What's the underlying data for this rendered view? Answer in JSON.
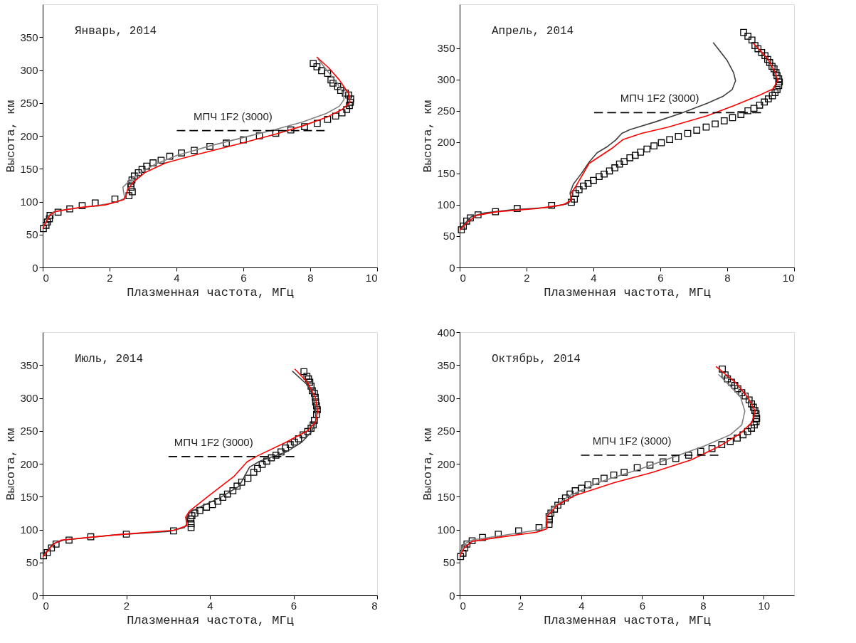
{
  "chart_data": [
    {
      "type": "line",
      "xlabel": "Плазменная частота, МГц",
      "ylabel": "Высота, км",
      "xlim": [
        0,
        10
      ],
      "xticks": [
        0,
        2,
        4,
        6,
        8,
        10
      ],
      "ylim": [
        0,
        400
      ],
      "yticks": [
        0,
        50,
        100,
        150,
        200,
        250,
        300,
        350
      ],
      "grid": false,
      "annotations": [
        "Январь, 2014"
      ],
      "series": [
        {
          "type": "scatter",
          "marker": "square",
          "color": "#000000",
          "x": [
            0.02,
            0.1,
            0.14,
            0.2,
            0.22,
            0.46,
            0.81,
            1.18,
            1.57,
            2.16,
            2.58,
            2.68,
            2.64,
            2.64,
            2.67,
            2.74,
            2.86,
            2.97,
            3.11,
            3.3,
            3.54,
            3.8,
            4.15,
            4.53,
            5.0,
            5.49,
            6.0,
            6.48,
            6.97,
            7.42,
            7.83,
            8.21,
            8.52,
            8.76,
            8.95,
            9.09,
            9.17,
            9.2,
            9.21,
            9.15,
            9.05,
            8.91,
            8.82,
            8.68,
            8.62,
            8.52,
            8.34,
            8.2,
            8.09
          ],
          "values": [
            59,
            64,
            69,
            74,
            79,
            84,
            89,
            94,
            98,
            104,
            109,
            115,
            122,
            127,
            133,
            139,
            144,
            149,
            154,
            159,
            163,
            169,
            174,
            178,
            184,
            189,
            194,
            200,
            204,
            209,
            214,
            219,
            225,
            230,
            235,
            240,
            246,
            251,
            256,
            262,
            265,
            269,
            275,
            280,
            285,
            295,
            299,
            305,
            310
          ]
        },
        {
          "type": "line",
          "color": "#808080",
          "x": [
            0,
            0.18,
            0.3,
            0.69,
            1.48,
            2.11,
            2.46,
            2.42,
            2.4,
            2.58,
            2.86,
            3.37,
            4.0,
            5.02,
            6.04,
            6.98,
            7.77,
            8.48,
            8.87,
            9.01,
            8.99,
            8.8,
            8.52,
            8.23
          ],
          "values": [
            61,
            78,
            84,
            88,
            93,
            98,
            105,
            114,
            122,
            131,
            142,
            157,
            170,
            185,
            198,
            210,
            221,
            234,
            245,
            255,
            264,
            281,
            298,
            317
          ]
        },
        {
          "type": "line",
          "color": "#ff0000",
          "x": [
            0,
            0.22,
            0.38,
            1.09,
            1.87,
            2.42,
            2.5,
            2.54,
            2.74,
            3.05,
            3.68,
            4.63,
            5.81,
            6.99,
            7.77,
            8.48,
            8.95,
            9.19,
            9.15,
            8.87,
            8.56,
            8.19
          ],
          "values": [
            59,
            80,
            85,
            91,
            95,
            103,
            110,
            119,
            131,
            144,
            159,
            172,
            187,
            203,
            215,
            228,
            240,
            251,
            264,
            285,
            303,
            320
          ]
        },
        {
          "name": "МПЧ 1F2 (3000)",
          "line_style": "dashed",
          "color": "#000000",
          "x": [
            4.01,
            8.43
          ],
          "values": [
            208,
            208
          ]
        }
      ]
    },
    {
      "type": "line",
      "xlabel": "Плазменная частота, МГц",
      "ylabel": "Высота, км",
      "xlim": [
        0,
        10
      ],
      "xticks": [
        0,
        2,
        4,
        6,
        8,
        10
      ],
      "ylim": [
        0,
        420
      ],
      "yticks": [
        0,
        50,
        100,
        150,
        200,
        250,
        300,
        350
      ],
      "grid": false,
      "annotations": [
        "Апрель, 2014"
      ],
      "series": [
        {
          "type": "scatter",
          "marker": "square",
          "color": "#000000",
          "x": [
            0.05,
            0.11,
            0.21,
            0.32,
            0.55,
            1.07,
            1.72,
            2.75,
            3.34,
            3.43,
            3.47,
            3.57,
            3.7,
            3.84,
            4.0,
            4.17,
            4.32,
            4.48,
            4.64,
            4.78,
            4.92,
            5.09,
            5.25,
            5.41,
            5.6,
            5.81,
            6.03,
            6.28,
            6.54,
            6.82,
            7.09,
            7.37,
            7.64,
            7.91,
            8.16,
            8.41,
            8.62,
            8.8,
            8.97,
            9.11,
            9.23,
            9.35,
            9.43,
            9.49,
            9.54,
            9.56,
            9.54,
            9.49,
            9.46,
            9.4,
            9.34,
            9.27,
            9.21,
            9.13,
            9.03,
            8.92,
            8.83,
            8.74,
            8.62,
            8.49
          ],
          "values": [
            60,
            66,
            74,
            79,
            84,
            89,
            94,
            99,
            104,
            109,
            118,
            124,
            130,
            134,
            139,
            145,
            149,
            154,
            159,
            165,
            169,
            175,
            179,
            184,
            189,
            194,
            199,
            204,
            209,
            214,
            219,
            224,
            229,
            234,
            239,
            244,
            250,
            254,
            259,
            264,
            269,
            274,
            279,
            284,
            290,
            296,
            301,
            306,
            311,
            317,
            321,
            327,
            332,
            338,
            343,
            349,
            354,
            363,
            369,
            375
          ]
        },
        {
          "type": "line",
          "color": "#404040",
          "x": [
            0,
            0.15,
            0.35,
            0.74,
            1.53,
            2.71,
            3.25,
            3.34,
            3.3,
            3.4,
            3.64,
            3.87,
            4.11,
            4.42,
            4.66,
            4.85,
            5.09,
            5.83,
            6.62,
            7.4,
            7.87,
            8.15,
            8.25,
            8.19,
            7.99,
            7.58
          ],
          "values": [
            60,
            70,
            81,
            87,
            92,
            96,
            102,
            109,
            119,
            133,
            150,
            168,
            183,
            193,
            203,
            214,
            220,
            232,
            246,
            262,
            273,
            284,
            298,
            311,
            331,
            359
          ]
        },
        {
          "type": "line",
          "color": "#ff0000",
          "x": [
            0,
            0.23,
            0.5,
            1.13,
            2.31,
            3.09,
            3.33,
            3.31,
            3.48,
            3.87,
            4.58,
            4.88,
            5.44,
            6.23,
            7.4,
            8.19,
            8.97,
            9.37,
            9.51,
            9.44,
            9.21,
            8.78
          ],
          "values": [
            59,
            72,
            83,
            89,
            94,
            100,
            107,
            117,
            130,
            166,
            191,
            204,
            214,
            224,
            242,
            258,
            275,
            285,
            298,
            311,
            333,
            358
          ]
        },
        {
          "name": "МПЧ 1F2 (3000)",
          "line_style": "dashed",
          "color": "#000000",
          "x": [
            4.02,
            9.01
          ],
          "values": [
            247,
            247
          ]
        }
      ]
    },
    {
      "type": "line",
      "xlabel": "Плазменная частота, МГц",
      "ylabel": "Высота, км",
      "xlim": [
        0,
        8
      ],
      "xticks": [
        0,
        2,
        4,
        6,
        8
      ],
      "ylim": [
        0,
        400
      ],
      "yticks": [
        0,
        50,
        100,
        150,
        200,
        250,
        300,
        350
      ],
      "grid": false,
      "annotations": [
        "Июль, 2014"
      ],
      "series": [
        {
          "type": "scatter",
          "marker": "square",
          "color": "#000000",
          "x": [
            0.02,
            0.11,
            0.21,
            0.32,
            0.63,
            1.15,
            2.0,
            3.13,
            3.55,
            3.55,
            3.54,
            3.57,
            3.64,
            3.76,
            3.92,
            4.06,
            4.19,
            4.31,
            4.42,
            4.55,
            4.65,
            4.76,
            4.91,
            5.05,
            5.14,
            5.25,
            5.36,
            5.47,
            5.58,
            5.7,
            5.81,
            5.92,
            6.02,
            6.12,
            6.23,
            6.34,
            6.42,
            6.47,
            6.5,
            6.55,
            6.57,
            6.55,
            6.53,
            6.52,
            6.5,
            6.45,
            6.42,
            6.39,
            6.36,
            6.32,
            6.25
          ],
          "values": [
            60,
            65,
            72,
            78,
            84,
            89,
            93,
            98,
            103,
            109,
            116,
            121,
            125,
            129,
            134,
            138,
            143,
            149,
            154,
            159,
            166,
            172,
            178,
            187,
            193,
            199,
            204,
            209,
            213,
            218,
            224,
            229,
            233,
            238,
            244,
            249,
            254,
            259,
            266,
            275,
            282,
            288,
            294,
            301,
            307,
            311,
            318,
            324,
            329,
            333,
            340
          ]
        },
        {
          "type": "line",
          "color": "#404040",
          "x": [
            0,
            0.26,
            0.51,
            1.76,
            3.01,
            3.39,
            3.45,
            3.44,
            3.51,
            3.82,
            4.26,
            4.7,
            4.95,
            5.2,
            5.83,
            6.2,
            6.42,
            6.53,
            6.53,
            6.45,
            6.33,
            5.97
          ],
          "values": [
            60,
            79,
            84,
            92,
            97,
            103,
            109,
            117,
            126,
            136,
            149,
            166,
            195,
            204,
            218,
            233,
            248,
            263,
            284,
            305,
            320,
            341
          ]
        },
        {
          "type": "line",
          "color": "#ff0000",
          "x": [
            0,
            0.26,
            0.45,
            1.76,
            3.14,
            3.45,
            3.42,
            3.51,
            4.01,
            4.58,
            4.89,
            5.14,
            5.83,
            6.33,
            6.52,
            6.58,
            6.52,
            6.33,
            6.03
          ],
          "values": [
            58,
            78,
            84,
            92,
            99,
            106,
            119,
            128,
            153,
            181,
            203,
            212,
            233,
            250,
            263,
            280,
            301,
            324,
            344
          ]
        },
        {
          "name": "МПЧ 1F2 (3000)",
          "line_style": "dashed",
          "color": "#000000",
          "x": [
            3.01,
            6.02
          ],
          "values": [
            211,
            211
          ]
        }
      ]
    },
    {
      "type": "line",
      "xlabel": "Плазменная частота, МГц",
      "ylabel": "Высота, км",
      "xlim": [
        0,
        11
      ],
      "xticks": [
        0,
        2,
        4,
        6,
        8,
        10
      ],
      "ylim": [
        0,
        400
      ],
      "yticks": [
        0,
        50,
        100,
        150,
        200,
        250,
        300,
        350,
        400
      ],
      "grid": false,
      "annotations": [
        "Октябрь, 2014"
      ],
      "series": [
        {
          "type": "scatter",
          "marker": "square",
          "color": "#000000",
          "x": [
            0.03,
            0.11,
            0.17,
            0.24,
            0.41,
            0.75,
            1.27,
            1.94,
            2.61,
            2.94,
            2.95,
            2.94,
            3.0,
            3.12,
            3.23,
            3.35,
            3.48,
            3.63,
            3.8,
            4.01,
            4.22,
            4.48,
            4.75,
            5.07,
            5.41,
            5.84,
            6.26,
            6.69,
            7.11,
            7.53,
            7.93,
            8.3,
            8.62,
            8.9,
            9.13,
            9.32,
            9.47,
            9.6,
            9.69,
            9.75,
            9.77,
            9.75,
            9.71,
            9.66,
            9.6,
            9.52,
            9.39,
            9.28,
            9.15,
            9.05,
            8.94,
            8.81,
            8.73,
            8.64
          ],
          "values": [
            59,
            64,
            72,
            78,
            83,
            88,
            93,
            98,
            103,
            108,
            115,
            120,
            125,
            131,
            137,
            143,
            148,
            154,
            159,
            163,
            168,
            173,
            178,
            183,
            187,
            194,
            198,
            203,
            208,
            213,
            219,
            223,
            229,
            234,
            239,
            244,
            249,
            254,
            259,
            264,
            269,
            276,
            281,
            286,
            291,
            297,
            303,
            308,
            314,
            319,
            324,
            329,
            335,
            344
          ]
        },
        {
          "type": "line",
          "color": "#808080",
          "x": [
            0,
            0.15,
            0.41,
            1.26,
            2.53,
            2.87,
            2.85,
            3.04,
            3.63,
            4.65,
            5.93,
            7.2,
            8.05,
            8.9,
            9.28,
            9.38,
            9.24,
            8.9,
            8.51
          ],
          "values": [
            61,
            78,
            84,
            90,
            99,
            104,
            120,
            133,
            152,
            173,
            192,
            213,
            227,
            244,
            259,
            280,
            301,
            318,
            336
          ]
        },
        {
          "type": "line",
          "color": "#ff0000",
          "x": [
            0,
            0.15,
            0.41,
            1.26,
            2.53,
            2.87,
            2.87,
            3.21,
            3.8,
            5.07,
            6.35,
            7.62,
            8.56,
            9.23,
            9.61,
            9.72,
            9.48,
            9.06,
            8.43
          ],
          "values": [
            59,
            72,
            82,
            88,
            96,
            101,
            120,
            137,
            152,
            171,
            187,
            206,
            227,
            246,
            263,
            280,
            301,
            324,
            348
          ]
        },
        {
          "name": "МПЧ 1F2 (3000)",
          "line_style": "dashed",
          "color": "#000000",
          "x": [
            3.99,
            8.51
          ],
          "values": [
            213,
            213
          ]
        }
      ]
    }
  ]
}
